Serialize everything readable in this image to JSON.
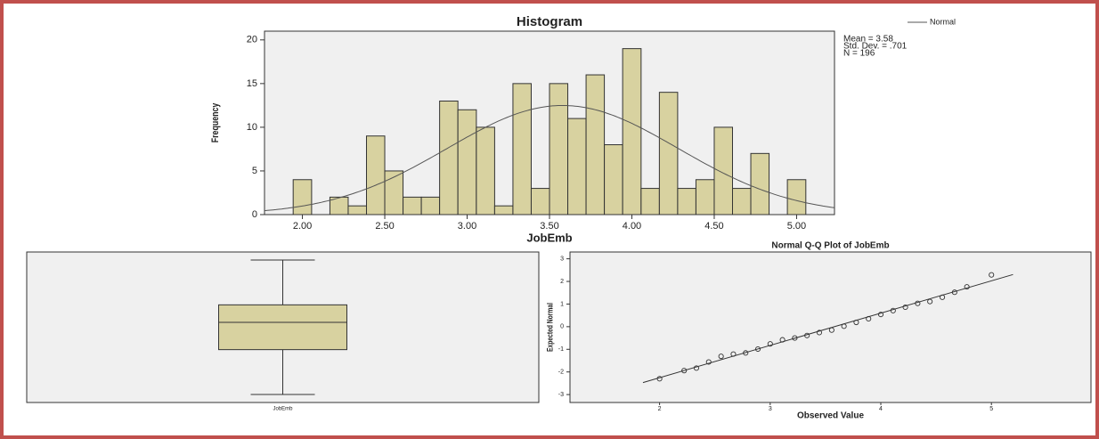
{
  "chart_data": [
    {
      "type": "histogram",
      "title": "Histogram",
      "x_label": "JobEmb",
      "y_label": "Frequency",
      "bins": [
        1.944,
        2.056,
        2.167,
        2.278,
        2.389,
        2.5,
        2.611,
        2.722,
        2.833,
        2.944,
        3.056,
        3.167,
        3.278,
        3.389,
        3.5,
        3.611,
        3.722,
        3.833,
        3.944,
        4.056,
        4.167,
        4.278,
        4.389,
        4.5,
        4.611,
        4.722,
        4.833,
        4.944,
        5.056
      ],
      "values": [
        4,
        0,
        2,
        1,
        9,
        5,
        2,
        2,
        13,
        12,
        10,
        1,
        15,
        3,
        15,
        11,
        16,
        8,
        19,
        3,
        14,
        3,
        4,
        10,
        3,
        7,
        0,
        4
      ],
      "color": "#d8d2a0",
      "xlim": [
        1.77,
        5.23
      ],
      "xticks": [
        {
          "value": 2,
          "label": "2.00"
        },
        {
          "value": 2.5,
          "label": "2.50"
        },
        {
          "value": 3,
          "label": "3.00"
        },
        {
          "value": 3.5,
          "label": "3.50"
        },
        {
          "value": 4,
          "label": "4.00"
        },
        {
          "value": 4.5,
          "label": "4.50"
        },
        {
          "value": 5,
          "label": "5.00"
        }
      ],
      "ylim": [
        0,
        21
      ],
      "yticks": [
        0,
        5,
        10,
        15,
        20
      ],
      "stats": [
        {
          "value": 3.58,
          "label": "Mean = 3.58"
        },
        {
          "value": 0.701,
          "label": "Std. Dev. = .701"
        },
        {
          "value": 196,
          "label": "N = 196"
        }
      ],
      "curve": {
        "name": "Normal",
        "color": "#555555"
      }
    },
    {
      "type": "box",
      "categories": [
        "JobEmb"
      ],
      "min": 2.0,
      "q1": 3.0,
      "median": 3.61,
      "q3": 4.0,
      "max": 5.0,
      "color": "#d8d2a0",
      "ylim": [
        1.82,
        5.18
      ]
    },
    {
      "type": "scatter",
      "title": "Normal Q-Q Plot of JobEmb",
      "x_label": "Observed Value",
      "y_label": "Expected Normal",
      "x": [
        2.0,
        2.222,
        2.333,
        2.444,
        2.556,
        2.667,
        2.778,
        2.889,
        3.0,
        3.111,
        3.222,
        3.333,
        3.444,
        3.556,
        3.667,
        3.778,
        3.889,
        4.0,
        4.111,
        4.222,
        4.333,
        4.444,
        4.556,
        4.667,
        4.778,
        5.0
      ],
      "values": [
        -2.3,
        -1.94,
        -1.83,
        -1.56,
        -1.31,
        -1.21,
        -1.16,
        -0.99,
        -0.76,
        -0.58,
        -0.5,
        -0.39,
        -0.26,
        -0.15,
        0.02,
        0.19,
        0.35,
        0.54,
        0.71,
        0.86,
        1.03,
        1.11,
        1.3,
        1.52,
        1.76,
        2.29
      ],
      "xlim": [
        1.19,
        5.9
      ],
      "xticks": [
        2,
        3,
        4,
        5
      ],
      "ylim": [
        -3.35,
        3.3
      ],
      "yticks": [
        3,
        2,
        1,
        0,
        -1,
        -2,
        -3
      ]
    }
  ]
}
